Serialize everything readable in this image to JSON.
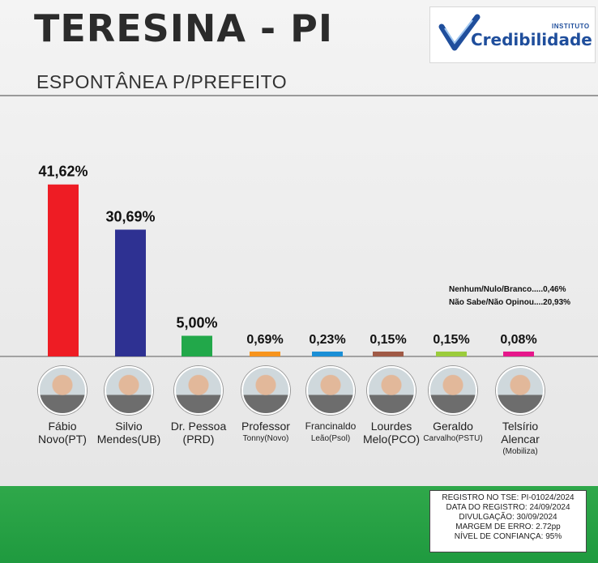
{
  "header": {
    "title": "TERESINA - PI",
    "subtitle": "ESPONTÂNEA P/PREFEITO"
  },
  "logo": {
    "small_text": "INSTITUTO",
    "brand": "Credibilidade",
    "colors": {
      "check": "#1f4e9c",
      "text": "#1f4e9c"
    }
  },
  "chart_data": {
    "type": "bar",
    "title": "ESPONTÂNEA P/PREFEITO",
    "categories": [
      "Fábio Novo(PT)",
      "Silvio Mendes(UB)",
      "Dr. Pessoa (PRD)",
      "Professor Tonny(Novo)",
      "Francinaldo Leão(Psol)",
      "Lourdes Melo(PCO)",
      "Geraldo Carvalho(PSTU)",
      "Telsírio Alencar (Mobiliza)"
    ],
    "values": [
      41.62,
      30.69,
      5.0,
      0.69,
      0.23,
      0.15,
      0.15,
      0.08
    ],
    "labels": [
      "41,62%",
      "30,69%",
      "5,00%",
      "0,69%",
      "0,23%",
      "0,15%",
      "0,15%",
      "0,08%"
    ],
    "colors": [
      "#ee1c24",
      "#2e3192",
      "#22a84a",
      "#f7941d",
      "#1b8fd6",
      "#a05a46",
      "#9bcc3c",
      "#e6178b"
    ],
    "ylim": [
      0,
      50
    ],
    "grid": false,
    "legend": "none"
  },
  "candidates": [
    {
      "name": "Fábio",
      "party": "Novo(PT)"
    },
    {
      "name": "Silvio",
      "party": "Mendes(UB)"
    },
    {
      "name": "Dr. Pessoa",
      "party": "(PRD)"
    },
    {
      "name": "Professor",
      "party": "Tonny(Novo)"
    },
    {
      "name": "Francinaldo",
      "party": "Leão(Psol)"
    },
    {
      "name": "Lourdes",
      "party": "Melo(PCO)"
    },
    {
      "name": "Geraldo",
      "party": "Carvalho(PSTU)"
    },
    {
      "name": "Telsírio",
      "name2": "Alencar",
      "party": "(Mobiliza)"
    }
  ],
  "notes": {
    "line1": "Nenhum/Nulo/Branco.....0,46%",
    "line2": "Não Sabe/Não Opinou....20,93%"
  },
  "registro": {
    "line1": "REGISTRO NO TSE: PI-01024/2024",
    "line2": "DATA DO REGISTRO: 24/09/2024",
    "line3": "DIVULGAÇÃO: 30/09/2024",
    "line4": "MARGEM DE ERRO: 2.72pp",
    "line5": "NÍVEL DE CONFIANÇA: 95%"
  }
}
